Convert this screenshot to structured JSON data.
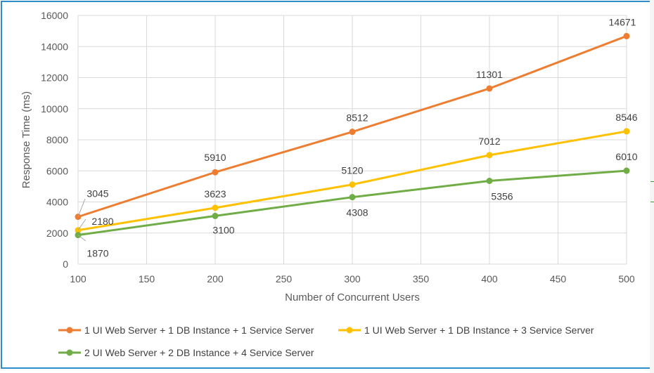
{
  "chart_data": {
    "type": "line",
    "title": "",
    "xlabel": "Number of Concurrent Users",
    "ylabel": "Response Time (ms)",
    "xlim": [
      100,
      500
    ],
    "ylim": [
      0,
      16000
    ],
    "xticks": [
      100,
      150,
      200,
      250,
      300,
      350,
      400,
      450,
      500
    ],
    "yticks": [
      0,
      2000,
      4000,
      6000,
      8000,
      10000,
      12000,
      14000,
      16000
    ],
    "grid": true,
    "legend_position": "bottom",
    "series": [
      {
        "name": "1 UI Web Server + 1 DB Instance + 1 Service Server",
        "color": "#ed7d31",
        "x": [
          100,
          200,
          300,
          400,
          500
        ],
        "values": [
          3045,
          5910,
          8512,
          11301,
          14671
        ]
      },
      {
        "name": "1 UI Web Server + 1 DB Instance + 3 Service Server",
        "color": "#ffc000",
        "x": [
          100,
          200,
          300,
          400,
          500
        ],
        "values": [
          2180,
          3623,
          5120,
          7012,
          8546
        ]
      },
      {
        "name": "2 UI Web Server + 2 DB Instance + 4 Service Server",
        "color": "#70ad47",
        "x": [
          100,
          200,
          300,
          400,
          500
        ],
        "values": [
          1870,
          3100,
          4308,
          5356,
          6010
        ]
      }
    ]
  }
}
